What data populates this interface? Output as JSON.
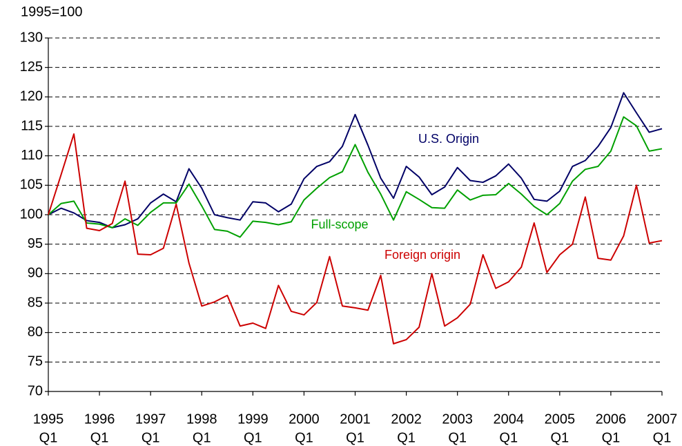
{
  "chart_data": {
    "type": "line",
    "y_axis_label": "1995=100",
    "categories": [
      [
        "1995",
        "Q1"
      ],
      null,
      null,
      null,
      [
        "1996",
        "Q1"
      ],
      null,
      null,
      null,
      [
        "1997",
        "Q1"
      ],
      null,
      null,
      null,
      [
        "1998",
        "Q1"
      ],
      null,
      null,
      null,
      [
        "1999",
        "Q1"
      ],
      null,
      null,
      null,
      [
        "2000",
        "Q1"
      ],
      null,
      null,
      null,
      [
        "2001",
        "Q1"
      ],
      null,
      null,
      null,
      [
        "2002",
        "Q1"
      ],
      null,
      null,
      null,
      [
        "2003",
        "Q1"
      ],
      null,
      null,
      null,
      [
        "2004",
        "Q1"
      ],
      null,
      null,
      null,
      [
        "2005",
        "Q1"
      ],
      null,
      null,
      null,
      [
        "2006",
        "Q1"
      ],
      null,
      null,
      null,
      [
        "2007",
        "Q1"
      ]
    ],
    "series": [
      {
        "name": "U.S. Origin",
        "color": "#000066",
        "values": [
          100,
          101.1,
          100.3,
          99,
          98.7,
          97.8,
          98.3,
          99.3,
          102,
          103.5,
          102.2,
          107.8,
          104.5,
          100,
          99.5,
          99.1,
          102.2,
          102,
          100.5,
          101.8,
          106.1,
          108.2,
          109,
          111.6,
          117,
          111.8,
          106.2,
          102.8,
          108.2,
          106.4,
          103.4,
          104.7,
          108,
          105.8,
          105.5,
          106.6,
          108.6,
          106.2,
          102.6,
          102.3,
          104,
          108.2,
          109.2,
          111.6,
          114.8,
          120.7,
          117.3,
          114,
          114.6
        ]
      },
      {
        "name": "Full-scope",
        "color": "#00a000",
        "values": [
          100,
          101.9,
          102.3,
          98.6,
          98.4,
          97.8,
          99.3,
          98.2,
          100.4,
          102,
          102,
          105.2,
          101.5,
          97.5,
          97.2,
          96.2,
          98.9,
          98.7,
          98.3,
          98.8,
          102.5,
          104.5,
          106.3,
          107.3,
          111.9,
          107.2,
          103.5,
          99.1,
          103.9,
          102.6,
          101.2,
          101.1,
          104.2,
          102.5,
          103.3,
          103.4,
          105.3,
          103.5,
          101.4,
          100,
          101.9,
          105.7,
          107.7,
          108.2,
          110.8,
          116.6,
          115.1,
          110.8,
          111.2
        ]
      },
      {
        "name": "Foreign origin",
        "color": "#cc0000",
        "values": [
          100,
          106.8,
          113.7,
          97.7,
          97.3,
          98.5,
          105.7,
          93.3,
          93.2,
          94.3,
          101.8,
          91.8,
          84.5,
          85.2,
          86.3,
          81.1,
          81.6,
          80.7,
          88,
          83.6,
          83,
          85.1,
          92.9,
          84.5,
          84.2,
          83.8,
          89.7,
          78.1,
          78.8,
          80.9,
          90,
          81.1,
          82.5,
          84.8,
          93.2,
          87.5,
          88.6,
          91.1,
          98.6,
          90.2,
          93.2,
          95,
          103,
          92.6,
          92.3,
          96.4,
          105,
          95.2,
          95.6
        ]
      }
    ],
    "ylim": [
      70,
      130
    ],
    "yticks": [
      70,
      75,
      80,
      85,
      90,
      95,
      100,
      105,
      110,
      115,
      120,
      125,
      130
    ],
    "grid": true
  }
}
